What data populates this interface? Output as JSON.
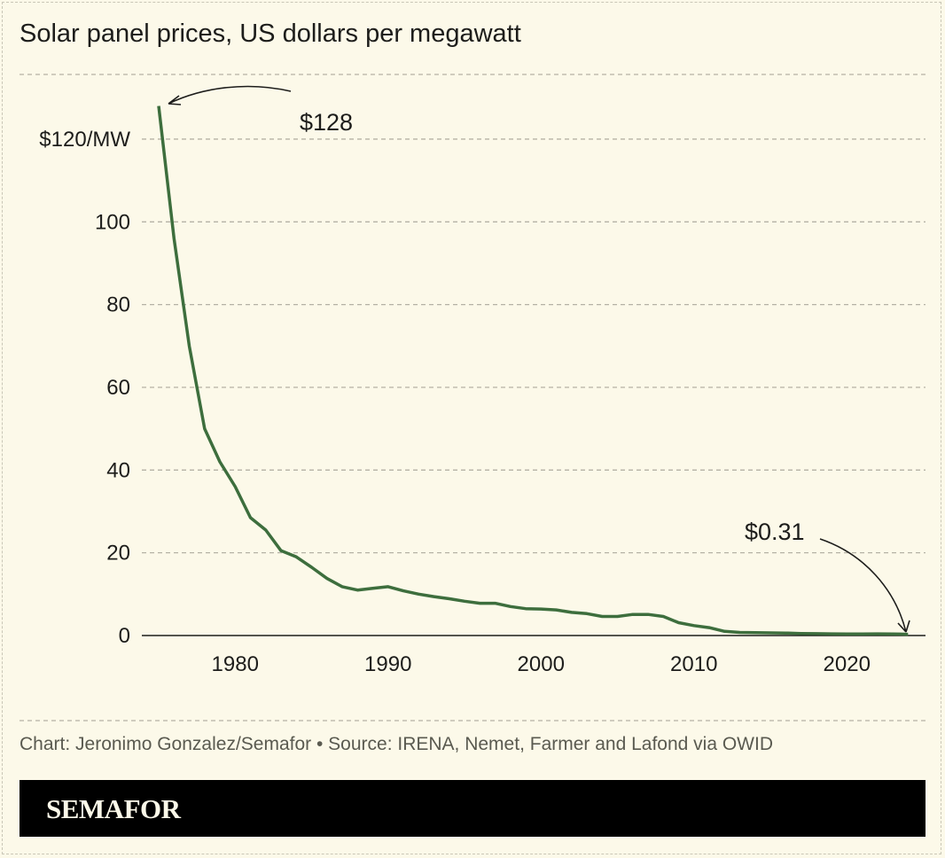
{
  "title": "Solar panel prices, US dollars per megawatt",
  "credit": "Chart: Jeronimo Gonzalez/Semafor • Source: IRENA, Nemet, Farmer and Lafond via OWID",
  "brand": "SEMAFOR",
  "colors": {
    "line": "#3d6e3d",
    "background": "#fcf9e9",
    "grid": "#b5b2a5",
    "text": "#1d1d1b"
  },
  "chart_data": {
    "type": "line",
    "title": "Solar panel prices, US dollars per megawatt",
    "xlabel": "",
    "ylabel": "",
    "xlim": [
      1975,
      2024
    ],
    "ylim": [
      0,
      128
    ],
    "grid": "horizontal dashed",
    "x_ticks": [
      1980,
      1990,
      2000,
      2010,
      2020
    ],
    "x_tick_labels": [
      "1980",
      "1990",
      "2000",
      "2010",
      "2020"
    ],
    "y_ticks": [
      0,
      20,
      40,
      60,
      80,
      100,
      120
    ],
    "y_tick_labels": [
      "0",
      "20",
      "40",
      "60",
      "80",
      "100",
      "$120/MW"
    ],
    "x": [
      1975,
      1976,
      1977,
      1978,
      1979,
      1980,
      1981,
      1982,
      1983,
      1984,
      1985,
      1986,
      1987,
      1988,
      1989,
      1990,
      1991,
      1992,
      1993,
      1994,
      1995,
      1996,
      1997,
      1998,
      1999,
      2000,
      2001,
      2002,
      2003,
      2004,
      2005,
      2006,
      2007,
      2008,
      2009,
      2010,
      2011,
      2012,
      2013,
      2014,
      2015,
      2016,
      2017,
      2018,
      2019,
      2020,
      2021,
      2022,
      2023,
      2024
    ],
    "values": [
      128,
      96,
      70,
      50,
      42,
      36,
      28.5,
      25.5,
      20.5,
      19,
      16.5,
      13.8,
      11.8,
      11,
      11.4,
      11.8,
      10.8,
      10,
      9.4,
      8.9,
      8.3,
      7.8,
      7.8,
      7,
      6.5,
      6.4,
      6.2,
      5.6,
      5.3,
      4.6,
      4.6,
      5.1,
      5.1,
      4.6,
      3.1,
      2.4,
      1.9,
      1,
      0.75,
      0.7,
      0.65,
      0.6,
      0.5,
      0.45,
      0.4,
      0.38,
      0.37,
      0.4,
      0.38,
      0.31
    ],
    "annotations": [
      {
        "text": "$128",
        "x": 1975,
        "y": 128
      },
      {
        "text": "$0.31",
        "x": 2024,
        "y": 0.31
      }
    ]
  }
}
